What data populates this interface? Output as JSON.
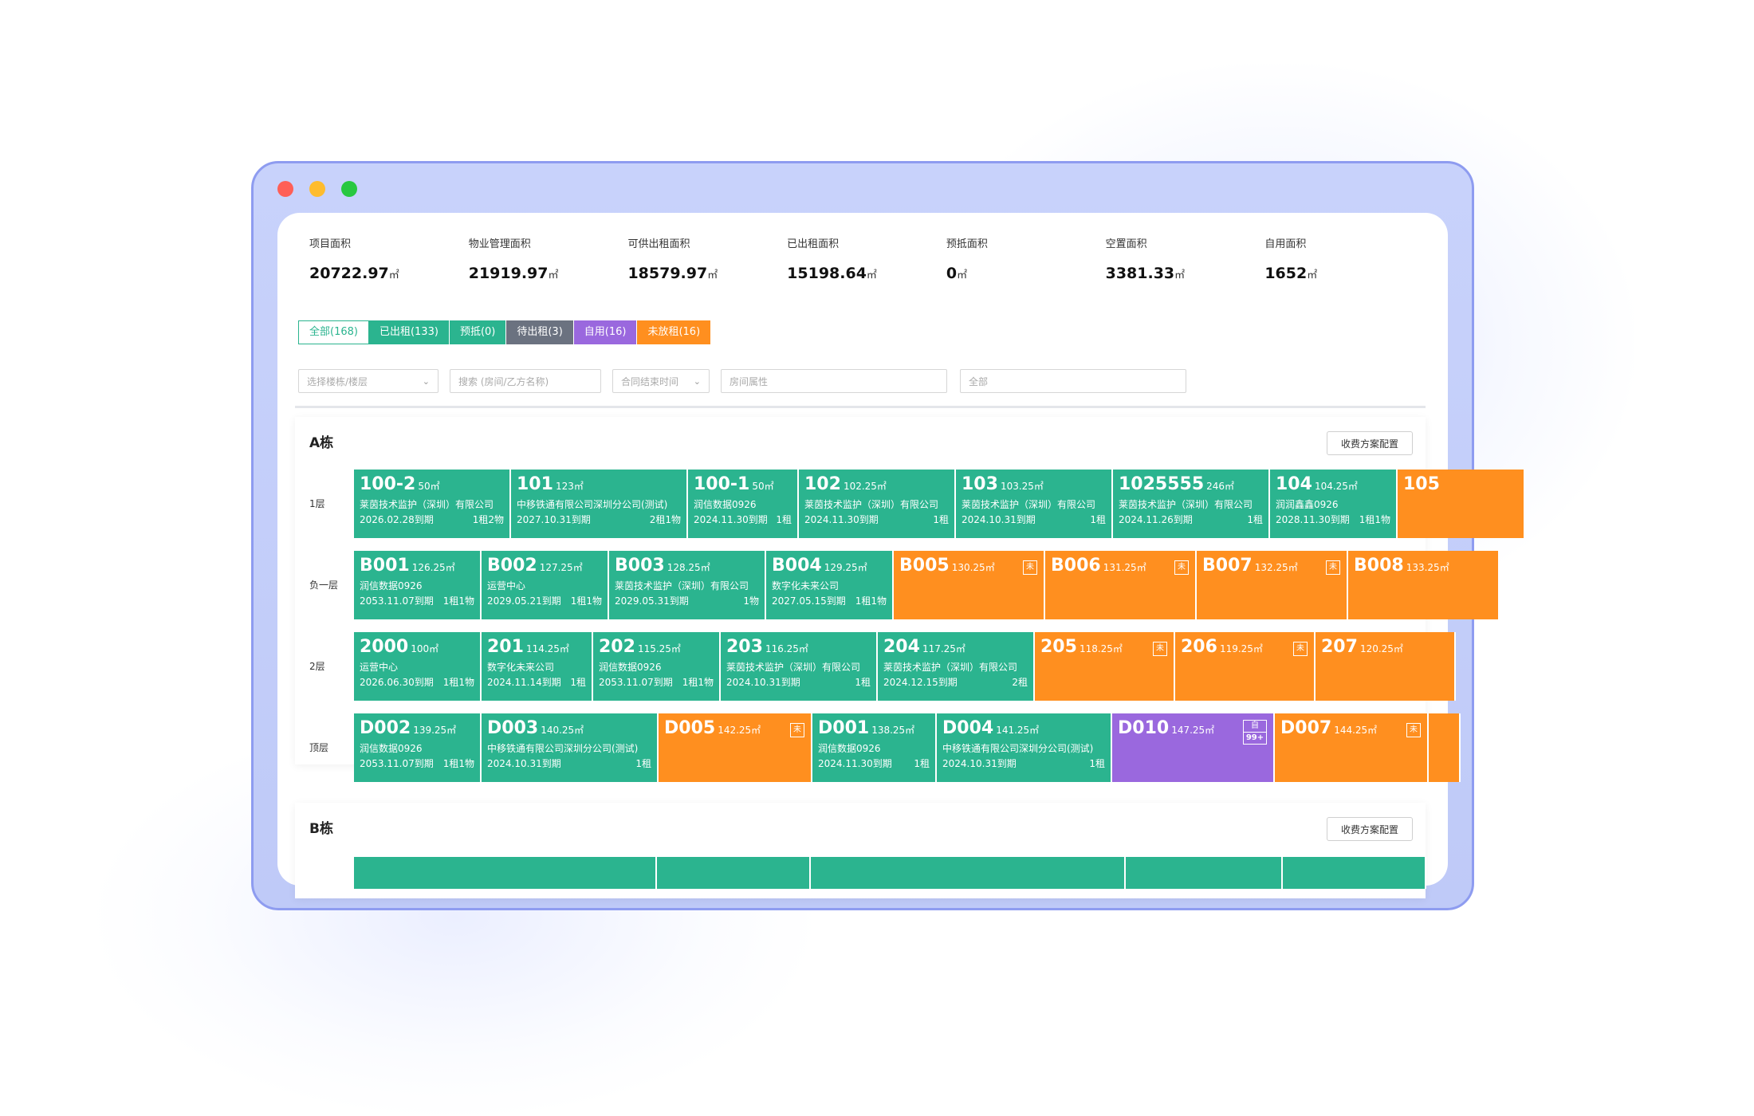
{
  "stats": [
    {
      "label": "项目面积",
      "value": "20722.97",
      "unit": "㎡"
    },
    {
      "label": "物业管理面积",
      "value": "21919.97",
      "unit": "㎡"
    },
    {
      "label": "可供出租面积",
      "value": "18579.97",
      "unit": "㎡"
    },
    {
      "label": "已出租面积",
      "value": "15198.64",
      "unit": "㎡"
    },
    {
      "label": "预抵面积",
      "value": "0",
      "unit": "㎡"
    },
    {
      "label": "空置面积",
      "value": "3381.33",
      "unit": "㎡"
    },
    {
      "label": "自用面积",
      "value": "1652",
      "unit": "㎡"
    }
  ],
  "tabs": [
    "全部(168)",
    "已出租(133)",
    "预抵(0)",
    "待出租(3)",
    "自用(16)",
    "未放租(16)"
  ],
  "filters": {
    "building": "选择楼栋/楼层",
    "search": "搜索 (房间/乙方名称)",
    "contract_end": "合同结束时间",
    "room_attr": "房间属性",
    "all": "全部"
  },
  "colors": {
    "rented": "#2bb48f",
    "unreleased": "#ff8f1f",
    "self_use": "#9a68de",
    "pending": "#6b7280"
  },
  "buildings": [
    {
      "name": "A栋",
      "fee_button": "收费方案配置",
      "floors": [
        {
          "label": "1层",
          "rooms": [
            {
              "no": "100-2",
              "area": "50㎡",
              "tenant": "莱茵技术监护（深圳）有限公司",
              "expiry": "2026.02.28到期",
              "count": "1租2物"
            },
            {
              "no": "101",
              "area": "123㎡",
              "tenant": "中移铁通有限公司深圳分公司(测试)",
              "expiry": "2027.10.31到期",
              "count": "2租1物"
            },
            {
              "no": "100-1",
              "area": "50㎡",
              "tenant": "润信数据0926",
              "expiry": "2024.11.30到期",
              "count": "1租"
            },
            {
              "no": "102",
              "area": "102.25㎡",
              "tenant": "莱茵技术监护（深圳）有限公司",
              "expiry": "2024.11.30到期",
              "count": "1租"
            },
            {
              "no": "103",
              "area": "103.25㎡",
              "tenant": "莱茵技术监护（深圳）有限公司",
              "expiry": "2024.10.31到期",
              "count": "1租"
            },
            {
              "no": "1025555",
              "area": "246㎡",
              "tenant": "莱茵技术监护（深圳）有限公司",
              "expiry": "2024.11.26到期",
              "count": "1租"
            },
            {
              "no": "104",
              "area": "104.25㎡",
              "tenant": "润润鑫鑫0926",
              "expiry": "2028.11.30到期",
              "count": "1租1物"
            },
            {
              "no": "105",
              "area": "",
              "tenant": "",
              "expiry": "",
              "count": ""
            }
          ]
        },
        {
          "label": "负一层",
          "rooms": [
            {
              "no": "B001",
              "area": "126.25㎡",
              "tenant": "润信数据0926",
              "expiry": "2053.11.07到期",
              "count": "1租1物"
            },
            {
              "no": "B002",
              "area": "127.25㎡",
              "tenant": "运营中心",
              "expiry": "2029.05.21到期",
              "count": "1租1物"
            },
            {
              "no": "B003",
              "area": "128.25㎡",
              "tenant": "莱茵技术监护（深圳）有限公司",
              "expiry": "2029.05.31到期",
              "count": "1物"
            },
            {
              "no": "B004",
              "area": "129.25㎡",
              "tenant": "数字化未来公司",
              "expiry": "2027.05.15到期",
              "count": "1租1物"
            },
            {
              "no": "B005",
              "area": "130.25㎡",
              "tag": "未"
            },
            {
              "no": "B006",
              "area": "131.25㎡",
              "tag": "未"
            },
            {
              "no": "B007",
              "area": "132.25㎡",
              "tag": "未"
            },
            {
              "no": "B008",
              "area": "133.25㎡"
            }
          ]
        },
        {
          "label": "2层",
          "rooms": [
            {
              "no": "2000",
              "area": "100㎡",
              "tenant": "运营中心",
              "expiry": "2026.06.30到期",
              "count": "1租1物"
            },
            {
              "no": "201",
              "area": "114.25㎡",
              "tenant": "数字化未来公司",
              "expiry": "2024.11.14到期",
              "count": "1租"
            },
            {
              "no": "202",
              "area": "115.25㎡",
              "tenant": "润信数据0926",
              "expiry": "2053.11.07到期",
              "count": "1租1物"
            },
            {
              "no": "203",
              "area": "116.25㎡",
              "tenant": "莱茵技术监护（深圳）有限公司",
              "expiry": "2024.10.31到期",
              "count": "1租"
            },
            {
              "no": "204",
              "area": "117.25㎡",
              "tenant": "莱茵技术监护（深圳）有限公司",
              "expiry": "2024.12.15到期",
              "count": "2租"
            },
            {
              "no": "205",
              "area": "118.25㎡",
              "tag": "未"
            },
            {
              "no": "206",
              "area": "119.25㎡",
              "tag": "未"
            },
            {
              "no": "207",
              "area": "120.25㎡"
            }
          ]
        },
        {
          "label": "顶层",
          "rooms": [
            {
              "no": "D002",
              "area": "139.25㎡",
              "tenant": "润信数据0926",
              "expiry": "2053.11.07到期",
              "count": "1租1物"
            },
            {
              "no": "D003",
              "area": "140.25㎡",
              "tenant": "中移铁通有限公司深圳分公司(测试)",
              "expiry": "2024.10.31到期",
              "count": "1租"
            },
            {
              "no": "D005",
              "area": "142.25㎡",
              "tag": "未"
            },
            {
              "no": "D001",
              "area": "138.25㎡",
              "tenant": "润信数据0926",
              "expiry": "2024.11.30到期",
              "count": "1租"
            },
            {
              "no": "D004",
              "area": "141.25㎡",
              "tenant": "中移铁通有限公司深圳分公司(测试)",
              "expiry": "2024.10.31到期",
              "count": "1租"
            },
            {
              "no": "D010",
              "area": "147.25㎡",
              "tag": "自",
              "badge": "99+"
            },
            {
              "no": "D007",
              "area": "144.25㎡",
              "tag": "未"
            },
            {
              "no": "",
              "area": ""
            }
          ]
        }
      ]
    },
    {
      "name": "B栋",
      "fee_button": "收费方案配置"
    }
  ]
}
